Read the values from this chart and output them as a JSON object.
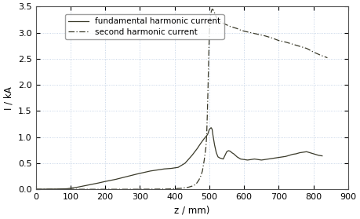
{
  "title": "",
  "xlabel": "z / mm)",
  "ylabel": "I / kA",
  "xlim": [
    0,
    900
  ],
  "ylim": [
    0,
    3.5
  ],
  "xticks": [
    0,
    100,
    200,
    300,
    400,
    500,
    600,
    700,
    800,
    900
  ],
  "yticks": [
    0,
    0.5,
    1,
    1.5,
    2,
    2.5,
    3,
    3.5
  ],
  "line_color": "#3a3a2a",
  "legend1": "fundamental harmonic current",
  "legend2": "second harmonic current",
  "fundamental_z": [
    0,
    60,
    90,
    100,
    120,
    150,
    180,
    200,
    230,
    260,
    290,
    310,
    330,
    350,
    370,
    390,
    410,
    430,
    450,
    465,
    475,
    485,
    495,
    500,
    505,
    508,
    510,
    515,
    520,
    525,
    530,
    540,
    550,
    555,
    560,
    565,
    570,
    575,
    580,
    590,
    600,
    610,
    620,
    630,
    640,
    650,
    660,
    670,
    680,
    690,
    700,
    710,
    720,
    730,
    740,
    750,
    760,
    770,
    780,
    790,
    800,
    815,
    825
  ],
  "fundamental_I": [
    0,
    0.005,
    0.01,
    0.02,
    0.04,
    0.08,
    0.12,
    0.15,
    0.19,
    0.24,
    0.29,
    0.32,
    0.35,
    0.37,
    0.39,
    0.4,
    0.42,
    0.5,
    0.65,
    0.78,
    0.88,
    0.97,
    1.05,
    1.15,
    1.18,
    1.15,
    1.05,
    0.85,
    0.7,
    0.62,
    0.6,
    0.58,
    0.72,
    0.74,
    0.73,
    0.7,
    0.68,
    0.65,
    0.62,
    0.58,
    0.57,
    0.56,
    0.57,
    0.58,
    0.57,
    0.56,
    0.57,
    0.58,
    0.59,
    0.6,
    0.61,
    0.62,
    0.63,
    0.65,
    0.67,
    0.68,
    0.7,
    0.71,
    0.72,
    0.7,
    0.68,
    0.65,
    0.64
  ],
  "second_z": [
    0,
    100,
    200,
    300,
    380,
    400,
    420,
    440,
    450,
    460,
    465,
    470,
    475,
    480,
    485,
    490,
    492,
    494,
    496,
    498,
    500,
    502,
    504,
    506,
    508,
    510,
    512,
    515,
    520,
    525,
    530,
    535,
    540,
    550,
    560,
    570,
    580,
    590,
    600,
    620,
    640,
    660,
    680,
    700,
    720,
    740,
    760,
    780,
    800,
    820,
    840
  ],
  "second_I": [
    0,
    0.0,
    0.0,
    0.0,
    0.005,
    0.01,
    0.02,
    0.04,
    0.06,
    0.09,
    0.13,
    0.18,
    0.25,
    0.35,
    0.55,
    0.8,
    1.0,
    1.4,
    1.9,
    2.5,
    3.0,
    3.25,
    3.35,
    3.42,
    3.45,
    3.45,
    3.42,
    3.38,
    3.3,
    3.25,
    3.22,
    3.2,
    3.18,
    3.15,
    3.12,
    3.1,
    3.08,
    3.05,
    3.03,
    3.0,
    2.97,
    2.94,
    2.9,
    2.85,
    2.82,
    2.78,
    2.74,
    2.7,
    2.63,
    2.57,
    2.52
  ]
}
